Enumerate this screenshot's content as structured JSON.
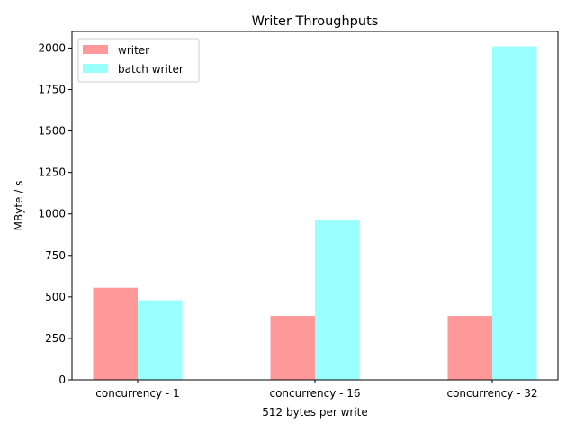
{
  "chart_data": {
    "type": "bar",
    "title": "Writer Throughputs",
    "xlabel": "512 bytes per write",
    "ylabel": "MByte / s",
    "ylim": [
      0,
      2100
    ],
    "yticks": [
      0,
      250,
      500,
      750,
      1000,
      1250,
      1500,
      1750,
      2000
    ],
    "categories": [
      "concurrency - 1",
      "concurrency - 16",
      "concurrency - 32"
    ],
    "series": [
      {
        "name": "writer",
        "color": "#ff9999",
        "values": [
          555,
          385,
          385
        ]
      },
      {
        "name": "batch writer",
        "color": "#99ffff",
        "values": [
          480,
          960,
          2010
        ]
      }
    ],
    "legend": {
      "position": "top-left"
    },
    "grid": false
  }
}
